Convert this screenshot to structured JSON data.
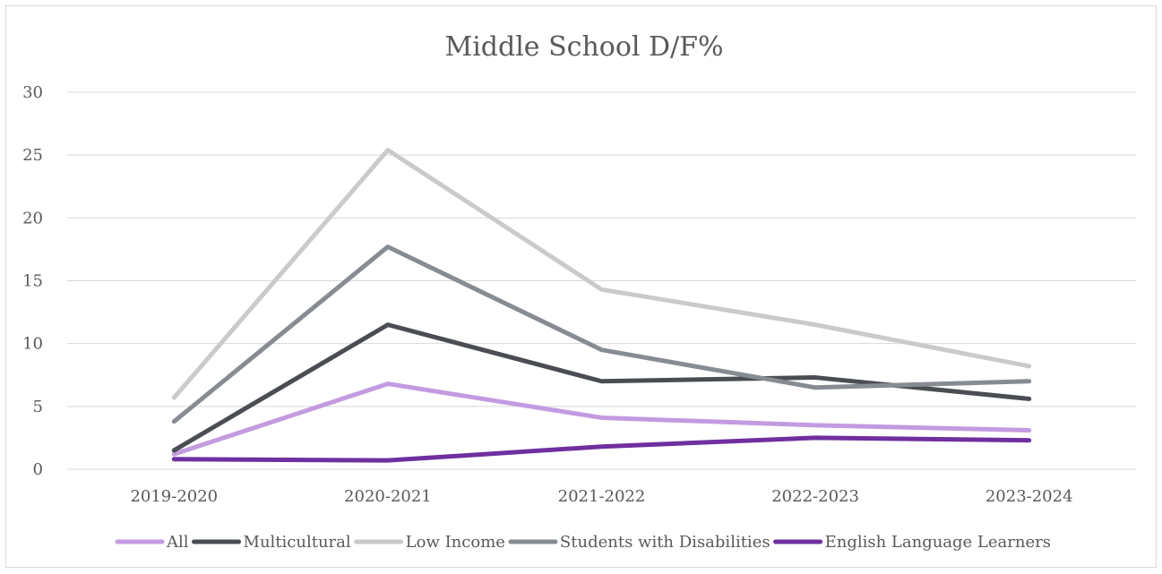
{
  "chart_data": {
    "type": "line",
    "title": "Middle School D/F%",
    "xlabel": "",
    "ylabel": "",
    "categories": [
      "2019-2020",
      "2020-2021",
      "2021-2022",
      "2022-2023",
      "2023-2024"
    ],
    "ylim": [
      0,
      30
    ],
    "yticks": [
      0,
      5,
      10,
      15,
      20,
      25,
      30
    ],
    "grid": true,
    "legend_position": "bottom",
    "series": [
      {
        "name": "All",
        "color": "#c39be0",
        "values": [
          1.2,
          6.8,
          4.1,
          3.5,
          3.1
        ]
      },
      {
        "name": "Multicultural",
        "color": "#4a4d52",
        "values": [
          1.5,
          11.5,
          7.0,
          7.3,
          5.6
        ]
      },
      {
        "name": "Low Income",
        "color": "#c8cacc",
        "values": [
          5.7,
          25.4,
          14.3,
          11.5,
          8.2
        ]
      },
      {
        "name": "Students with Disabilities",
        "color": "#878c93",
        "values": [
          3.8,
          17.7,
          9.5,
          6.5,
          7.0
        ]
      },
      {
        "name": "English Language Learners",
        "color": "#6f2f9f",
        "values": [
          0.8,
          0.7,
          1.8,
          2.5,
          2.3
        ]
      }
    ]
  }
}
